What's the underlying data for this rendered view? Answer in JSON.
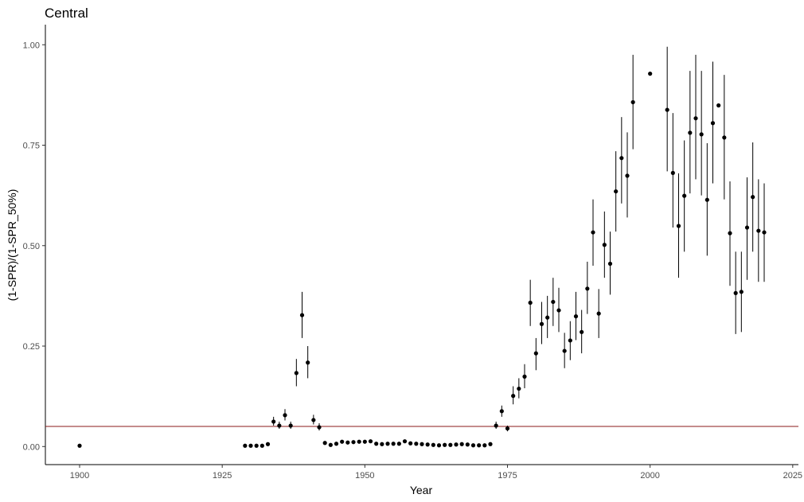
{
  "chart_data": {
    "type": "scatter",
    "title": "Central",
    "xlabel": "Year",
    "ylabel": "(1-SPR)/(1-SPR_50%)",
    "xlim": [
      1894,
      2026
    ],
    "ylim": [
      -0.045,
      1.05
    ],
    "x_ticks": [
      1900,
      1925,
      1950,
      1975,
      2000,
      2025
    ],
    "y_ticks": [
      0.0,
      0.25,
      0.5,
      0.75,
      1.0
    ],
    "x_tick_labels": [
      "1900",
      "1925",
      "1950",
      "1975",
      "2000",
      "2025"
    ],
    "y_tick_labels": [
      "0.00",
      "0.25",
      "0.50",
      "0.75",
      "1.00"
    ],
    "grid": false,
    "reference_line": {
      "y": 0.05,
      "color": "#8b1a1a"
    },
    "point_color": "#000000",
    "series": [
      {
        "x": [
          1900,
          1929,
          1930,
          1931,
          1932,
          1933,
          1934,
          1935,
          1936,
          1937,
          1938,
          1939,
          1940,
          1941,
          1942,
          1943,
          1944,
          1945,
          1946,
          1947,
          1948,
          1949,
          1950,
          1951,
          1952,
          1953,
          1954,
          1955,
          1956,
          1957,
          1958,
          1959,
          1960,
          1961,
          1962,
          1963,
          1964,
          1965,
          1966,
          1967,
          1968,
          1969,
          1970,
          1971,
          1972,
          1973,
          1974,
          1975,
          1976,
          1977,
          1978,
          1979,
          1980,
          1981,
          1982,
          1983,
          1984,
          1985,
          1986,
          1987,
          1988,
          1989,
          1990,
          1991,
          1992,
          1993,
          1994,
          1995,
          1996,
          1997,
          2000,
          2003,
          2004,
          2005,
          2006,
          2007,
          2008,
          2009,
          2010,
          2011,
          2012,
          2013,
          2014,
          2015,
          2016,
          2017,
          2018,
          2019,
          2020
        ],
        "y": [
          0.002,
          0.002,
          0.002,
          0.002,
          0.002,
          0.006,
          0.062,
          0.052,
          0.078,
          0.052,
          0.183,
          0.327,
          0.209,
          0.066,
          0.048,
          0.009,
          0.004,
          0.007,
          0.012,
          0.01,
          0.011,
          0.012,
          0.012,
          0.013,
          0.007,
          0.006,
          0.007,
          0.007,
          0.007,
          0.013,
          0.008,
          0.007,
          0.006,
          0.005,
          0.004,
          0.003,
          0.004,
          0.004,
          0.005,
          0.006,
          0.005,
          0.003,
          0.003,
          0.003,
          0.006,
          0.052,
          0.088,
          0.045,
          0.126,
          0.144,
          0.174,
          0.358,
          0.232,
          0.305,
          0.321,
          0.36,
          0.339,
          0.238,
          0.264,
          0.324,
          0.285,
          0.393,
          0.533,
          0.331,
          0.502,
          0.455,
          0.635,
          0.718,
          0.674,
          0.857,
          0.928,
          0.838,
          0.681,
          0.549,
          0.624,
          0.781,
          0.817,
          0.777,
          0.614,
          0.805,
          0.849,
          0.769,
          0.531,
          0.382,
          0.385,
          0.545,
          0.621,
          0.537,
          0.533
        ],
        "lower": [
          0.002,
          0.002,
          0.002,
          0.002,
          0.002,
          0.006,
          0.052,
          0.044,
          0.065,
          0.044,
          0.15,
          0.27,
          0.17,
          0.055,
          0.04,
          0.009,
          0.004,
          0.007,
          0.012,
          0.01,
          0.011,
          0.012,
          0.012,
          0.013,
          0.007,
          0.006,
          0.007,
          0.007,
          0.007,
          0.013,
          0.008,
          0.007,
          0.006,
          0.005,
          0.004,
          0.003,
          0.004,
          0.004,
          0.005,
          0.006,
          0.005,
          0.003,
          0.003,
          0.003,
          0.006,
          0.044,
          0.074,
          0.038,
          0.105,
          0.12,
          0.145,
          0.3,
          0.19,
          0.255,
          0.27,
          0.3,
          0.285,
          0.195,
          0.215,
          0.265,
          0.232,
          0.33,
          0.45,
          0.27,
          0.42,
          0.378,
          0.535,
          0.605,
          0.57,
          0.74,
          0.928,
          0.685,
          0.545,
          0.42,
          0.485,
          0.63,
          0.665,
          0.625,
          0.475,
          0.655,
          0.849,
          0.615,
          0.4,
          0.28,
          0.285,
          0.415,
          0.485,
          0.41,
          0.41
        ],
        "upper": [
          0.002,
          0.002,
          0.002,
          0.002,
          0.002,
          0.006,
          0.074,
          0.062,
          0.093,
          0.062,
          0.218,
          0.385,
          0.25,
          0.079,
          0.058,
          0.009,
          0.004,
          0.007,
          0.012,
          0.01,
          0.011,
          0.012,
          0.012,
          0.013,
          0.007,
          0.006,
          0.007,
          0.007,
          0.007,
          0.013,
          0.008,
          0.007,
          0.006,
          0.005,
          0.004,
          0.003,
          0.004,
          0.004,
          0.005,
          0.006,
          0.005,
          0.003,
          0.003,
          0.003,
          0.006,
          0.062,
          0.102,
          0.052,
          0.15,
          0.17,
          0.205,
          0.415,
          0.27,
          0.36,
          0.375,
          0.42,
          0.395,
          0.283,
          0.312,
          0.385,
          0.34,
          0.46,
          0.615,
          0.392,
          0.585,
          0.535,
          0.735,
          0.82,
          0.782,
          0.975,
          0.928,
          0.995,
          0.83,
          0.68,
          0.762,
          0.935,
          0.975,
          0.935,
          0.755,
          0.958,
          0.849,
          0.925,
          0.66,
          0.485,
          0.485,
          0.67,
          0.757,
          0.665,
          0.655
        ]
      }
    ]
  }
}
